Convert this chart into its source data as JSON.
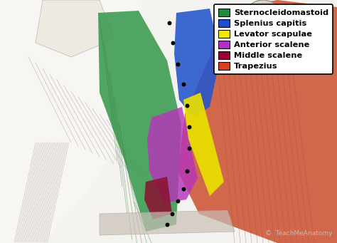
{
  "legend_items": [
    {
      "label": "Sternocleidomastoid",
      "color": "#1f8c3b"
    },
    {
      "label": "Splenius capitis",
      "color": "#1b4fcc"
    },
    {
      "label": "Levator scapulae",
      "color": "#f0e800"
    },
    {
      "label": "Anterior scalene",
      "color": "#b030c0"
    },
    {
      "label": "Middle scalene",
      "color": "#990033"
    },
    {
      "label": "Trapezius",
      "color": "#d94020"
    }
  ],
  "watermark_text": "©  TeachMeAnatomy",
  "watermark_color": "#bbbbbb",
  "bg_color": "#ffffff",
  "fig_width": 4.74,
  "fig_height": 3.41,
  "dpi": 100,
  "anatomy_bg": "#d8d0c8",
  "scm_color": "#3a9a50",
  "trap_color": "#cc5535",
  "spl_color": "#2255cc",
  "lev_color": "#e8e000",
  "ant_color": "#b535bb",
  "mid_color": "#8a1030",
  "sketch_light": "#e0dbd5",
  "sketch_dark": "#999090"
}
